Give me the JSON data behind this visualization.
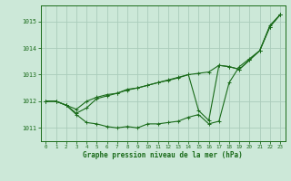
{
  "background_color": "#cce8d8",
  "grid_color": "#aaccbb",
  "line_color": "#1a6b1a",
  "xlabel": "Graphe pression niveau de la mer (hPa)",
  "xlim": [
    -0.5,
    23.5
  ],
  "ylim": [
    1010.5,
    1015.6
  ],
  "yticks": [
    1011,
    1012,
    1013,
    1014,
    1015
  ],
  "xticks": [
    0,
    1,
    2,
    3,
    4,
    5,
    6,
    7,
    8,
    9,
    10,
    11,
    12,
    13,
    14,
    15,
    16,
    17,
    18,
    19,
    20,
    21,
    22,
    23
  ],
  "series": [
    [
      1012.0,
      1012.0,
      1011.85,
      1011.5,
      1011.2,
      1011.15,
      1011.05,
      1011.0,
      1011.05,
      1011.0,
      1011.15,
      1011.15,
      1011.2,
      1011.25,
      1011.4,
      1011.5,
      1011.15,
      1011.25,
      1012.7,
      1013.3,
      1013.6,
      1013.9,
      1014.85,
      1015.25
    ],
    [
      1012.0,
      1012.0,
      1011.85,
      1011.7,
      1012.0,
      1012.15,
      1012.25,
      1012.3,
      1012.45,
      1012.5,
      1012.6,
      1012.7,
      1012.8,
      1012.9,
      1013.0,
      1013.05,
      1013.1,
      1013.35,
      1013.3,
      1013.2,
      1013.55,
      1013.9,
      1014.8,
      1015.25
    ],
    [
      1012.0,
      1012.0,
      1011.85,
      1011.55,
      1011.75,
      1012.1,
      1012.2,
      1012.3,
      1012.42,
      1012.5,
      1012.6,
      1012.7,
      1012.78,
      1012.88,
      1013.0,
      1011.65,
      1011.28,
      1013.35,
      1013.3,
      1013.2,
      1013.55,
      1013.9,
      1014.8,
      1015.25
    ]
  ]
}
